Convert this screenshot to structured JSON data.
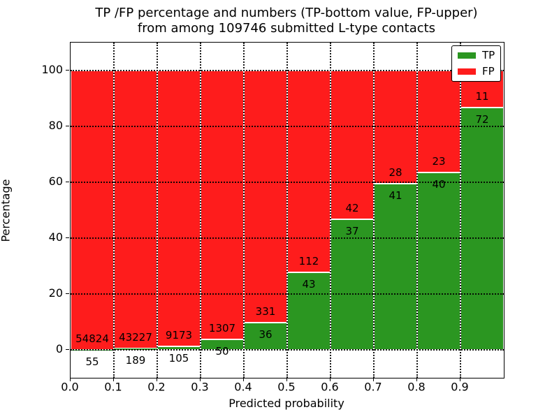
{
  "title": {
    "line1": "TP /FP percentage and numbers (TP-bottom value, FP-upper)",
    "line2": "from among 109746 submitted L-type contacts"
  },
  "chart_data": {
    "type": "bar",
    "stacked": true,
    "normalized": "each stack scaled to 100%, labels show raw counts",
    "categories": [
      "0.0-0.1",
      "0.1-0.2",
      "0.2-0.3",
      "0.3-0.4",
      "0.4-0.5",
      "0.5-0.6",
      "0.6-0.7",
      "0.7-0.8",
      "0.8-0.9",
      "0.9-1.0"
    ],
    "series": [
      {
        "name": "TP",
        "color": "#2b9621",
        "values": [
          55,
          189,
          105,
          50,
          36,
          43,
          37,
          41,
          40,
          72
        ]
      },
      {
        "name": "FP",
        "color": "#fe1c1c",
        "values": [
          54824,
          43227,
          9173,
          1307,
          331,
          112,
          42,
          28,
          23,
          11
        ]
      }
    ],
    "xlabel": "Predicted probability",
    "ylabel": "Percentage",
    "xlim": [
      0.0,
      1.0
    ],
    "ylim": [
      -10,
      110
    ],
    "xticks": [
      "0.0",
      "0.1",
      "0.2",
      "0.3",
      "0.4",
      "0.5",
      "0.6",
      "0.7",
      "0.8",
      "0.9"
    ],
    "yticks": [
      0,
      20,
      40,
      60,
      80,
      100
    ],
    "grid": "dotted black, vertical at x ticks and horizontal at y ticks, drawn over bars",
    "bar_edge_color": "#ffffff",
    "legend": {
      "position": "upper right",
      "items": [
        "TP",
        "FP"
      ]
    }
  },
  "colors": {
    "background": "#ffffff",
    "text": "#000000",
    "spine": "#000000",
    "tp_green": "#2b9621",
    "fp_red": "#fe1c1c"
  }
}
